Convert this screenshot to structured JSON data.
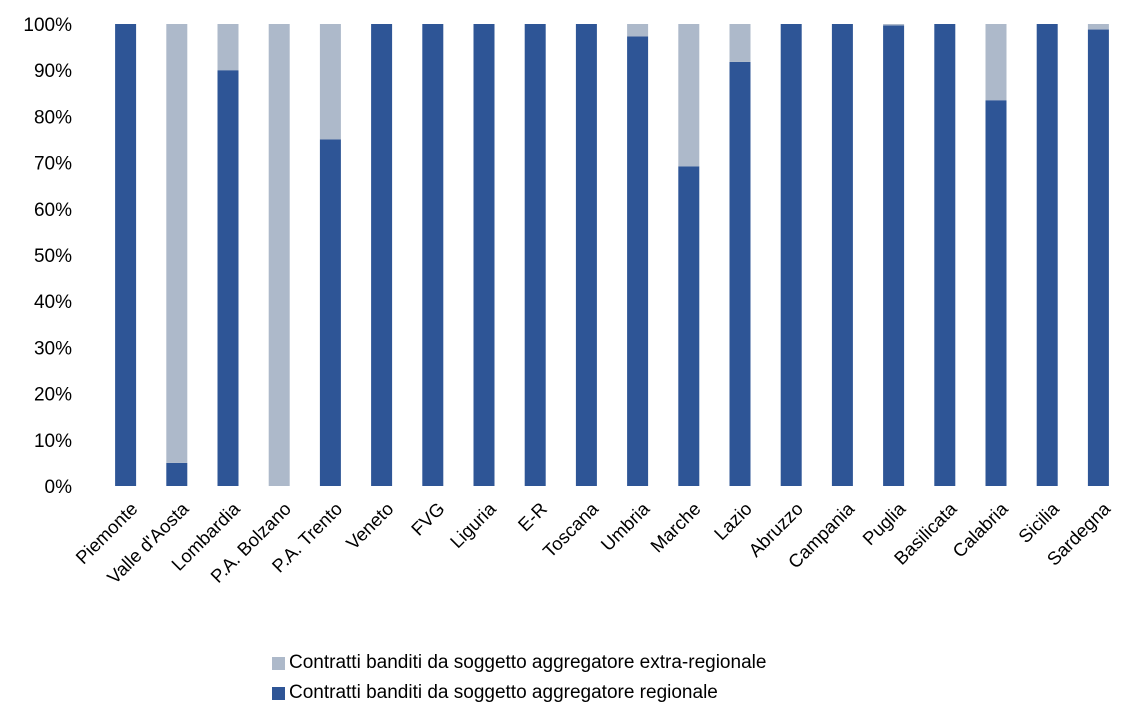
{
  "chart_data": {
    "type": "bar",
    "stacked": true,
    "categories": [
      "Piemonte",
      "Valle d'Aosta",
      "Lombardia",
      "P.A. Bolzano",
      "P.A. Trento",
      "Veneto",
      "FVG",
      "Liguria",
      "E-R",
      "Toscana",
      "Umbria",
      "Marche",
      "Lazio",
      "Abruzzo",
      "Campania",
      "Puglia",
      "Basilicata",
      "Calabria",
      "Sicilia",
      "Sardegna"
    ],
    "series": [
      {
        "name": "Contratti banditi da soggetto aggregatore regionale",
        "color": "#2E5596",
        "values": [
          100,
          5,
          90,
          0,
          75,
          100,
          100,
          100,
          100,
          100,
          97.3,
          69.2,
          91.8,
          100,
          100,
          99.7,
          100,
          83.5,
          100,
          98.8
        ]
      },
      {
        "name": "Contratti banditi da soggetto aggregatore extra-regionale",
        "color": "#ADB9CA",
        "values": [
          0,
          95,
          10,
          100,
          25,
          0,
          0,
          0,
          0,
          0,
          2.7,
          30.8,
          8.2,
          0,
          0,
          0.3,
          0,
          16.5,
          0,
          1.2
        ]
      }
    ],
    "ylim": [
      0,
      100
    ],
    "y_ticks": [
      "0%",
      "10%",
      "20%",
      "30%",
      "40%",
      "50%",
      "60%",
      "70%",
      "80%",
      "90%",
      "100%"
    ],
    "grid": false,
    "legend_position": "bottom",
    "legend_order": [
      1,
      0
    ]
  }
}
